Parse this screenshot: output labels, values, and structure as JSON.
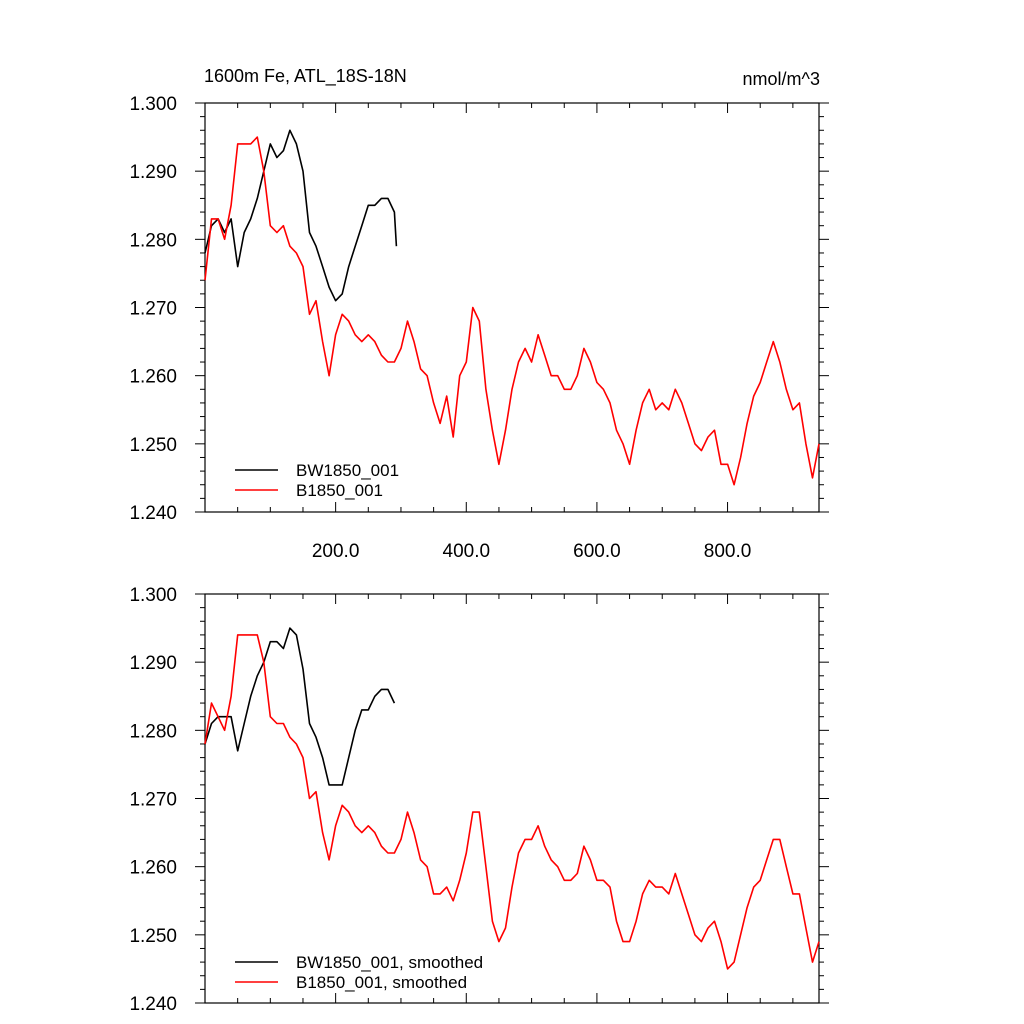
{
  "chart_data": [
    {
      "type": "line",
      "title": "1600m Fe, ATL_18S-18N",
      "units": "nmol/m^3",
      "x_tick_labels": [
        "200.0",
        "400.0",
        "600.0",
        "800.0"
      ],
      "x_ticks": [
        200,
        400,
        600,
        800
      ],
      "xlim": [
        0,
        940
      ],
      "ylim": [
        1.24,
        1.3
      ],
      "y_ticks": [
        1.24,
        1.25,
        1.26,
        1.27,
        1.28,
        1.29,
        1.3
      ],
      "y_tick_labels": [
        "1.240",
        "1.250",
        "1.260",
        "1.270",
        "1.280",
        "1.290",
        "1.300"
      ],
      "legend_position": "bottom-left",
      "colors": {
        "BW1850_001": "#000000",
        "B1850_001": "#ff0000"
      },
      "series": [
        {
          "name": "BW1850_001",
          "color": "#000000",
          "x": [
            0,
            10,
            20,
            30,
            40,
            50,
            60,
            70,
            80,
            90,
            100,
            110,
            120,
            130,
            140,
            150,
            160,
            170,
            180,
            190,
            200,
            210,
            220,
            230,
            240,
            250,
            260,
            270,
            280,
            290,
            293
          ],
          "y": [
            1.278,
            1.282,
            1.283,
            1.281,
            1.283,
            1.276,
            1.281,
            1.283,
            1.286,
            1.29,
            1.294,
            1.292,
            1.293,
            1.296,
            1.294,
            1.29,
            1.281,
            1.279,
            1.276,
            1.273,
            1.271,
            1.272,
            1.276,
            1.279,
            1.282,
            1.285,
            1.285,
            1.286,
            1.286,
            1.284,
            1.279
          ]
        },
        {
          "name": "B1850_001",
          "color": "#ff0000",
          "x": [
            0,
            10,
            20,
            30,
            40,
            50,
            60,
            70,
            80,
            90,
            100,
            110,
            120,
            130,
            140,
            150,
            160,
            170,
            180,
            190,
            200,
            210,
            220,
            230,
            240,
            250,
            260,
            270,
            280,
            290,
            300,
            310,
            320,
            330,
            340,
            350,
            360,
            370,
            380,
            390,
            400,
            410,
            420,
            430,
            440,
            450,
            460,
            470,
            480,
            490,
            500,
            510,
            520,
            530,
            540,
            550,
            560,
            570,
            580,
            590,
            600,
            610,
            620,
            630,
            640,
            650,
            660,
            670,
            680,
            690,
            700,
            710,
            720,
            730,
            740,
            750,
            760,
            770,
            780,
            790,
            800,
            810,
            820,
            830,
            840,
            850,
            860,
            870,
            880,
            890,
            900,
            910,
            920,
            930,
            940
          ],
          "y": [
            1.274,
            1.283,
            1.283,
            1.28,
            1.285,
            1.294,
            1.294,
            1.294,
            1.295,
            1.29,
            1.282,
            1.281,
            1.282,
            1.279,
            1.278,
            1.276,
            1.269,
            1.271,
            1.265,
            1.26,
            1.266,
            1.269,
            1.268,
            1.266,
            1.265,
            1.266,
            1.265,
            1.263,
            1.262,
            1.262,
            1.264,
            1.268,
            1.265,
            1.261,
            1.26,
            1.256,
            1.253,
            1.257,
            1.251,
            1.26,
            1.262,
            1.27,
            1.268,
            1.258,
            1.252,
            1.247,
            1.252,
            1.258,
            1.262,
            1.264,
            1.262,
            1.266,
            1.263,
            1.26,
            1.26,
            1.258,
            1.258,
            1.26,
            1.264,
            1.262,
            1.259,
            1.258,
            1.256,
            1.252,
            1.25,
            1.247,
            1.252,
            1.256,
            1.258,
            1.255,
            1.256,
            1.255,
            1.258,
            1.256,
            1.253,
            1.25,
            1.249,
            1.251,
            1.252,
            1.247,
            1.247,
            1.244,
            1.248,
            1.253,
            1.257,
            1.259,
            1.262,
            1.265,
            1.262,
            1.258,
            1.255,
            1.256,
            1.25,
            1.245,
            1.25
          ]
        }
      ]
    },
    {
      "type": "line",
      "xlim": [
        0,
        940
      ],
      "x_ticks": [
        200,
        400,
        600,
        800
      ],
      "ylim": [
        1.24,
        1.3
      ],
      "y_ticks": [
        1.24,
        1.25,
        1.26,
        1.27,
        1.28,
        1.29,
        1.3
      ],
      "y_tick_labels": [
        "1.240",
        "1.250",
        "1.260",
        "1.270",
        "1.280",
        "1.290",
        "1.300"
      ],
      "legend_position": "bottom-left",
      "colors": {
        "BW1850_001, smoothed": "#000000",
        "B1850_001, smoothed": "#ff0000"
      },
      "series": [
        {
          "name": "BW1850_001, smoothed",
          "color": "#000000",
          "x": [
            0,
            10,
            20,
            30,
            40,
            50,
            60,
            70,
            80,
            90,
            100,
            110,
            120,
            130,
            140,
            150,
            160,
            170,
            180,
            190,
            200,
            210,
            220,
            230,
            240,
            250,
            260,
            270,
            280,
            290
          ],
          "y": [
            1.278,
            1.281,
            1.282,
            1.282,
            1.282,
            1.277,
            1.281,
            1.285,
            1.288,
            1.29,
            1.293,
            1.293,
            1.292,
            1.295,
            1.294,
            1.289,
            1.281,
            1.279,
            1.276,
            1.272,
            1.272,
            1.272,
            1.276,
            1.28,
            1.283,
            1.283,
            1.285,
            1.286,
            1.286,
            1.284
          ]
        },
        {
          "name": "B1850_001, smoothed",
          "color": "#ff0000",
          "x": [
            0,
            10,
            20,
            30,
            40,
            50,
            60,
            70,
            80,
            90,
            100,
            110,
            120,
            130,
            140,
            150,
            160,
            170,
            180,
            190,
            200,
            210,
            220,
            230,
            240,
            250,
            260,
            270,
            280,
            290,
            300,
            310,
            320,
            330,
            340,
            350,
            360,
            370,
            380,
            390,
            400,
            410,
            420,
            430,
            440,
            450,
            460,
            470,
            480,
            490,
            500,
            510,
            520,
            530,
            540,
            550,
            560,
            570,
            580,
            590,
            600,
            610,
            620,
            630,
            640,
            650,
            660,
            670,
            680,
            690,
            700,
            710,
            720,
            730,
            740,
            750,
            760,
            770,
            780,
            790,
            800,
            810,
            820,
            830,
            840,
            850,
            860,
            870,
            880,
            890,
            900,
            910,
            920,
            930,
            940
          ],
          "y": [
            1.278,
            1.284,
            1.282,
            1.28,
            1.285,
            1.294,
            1.294,
            1.294,
            1.294,
            1.29,
            1.282,
            1.281,
            1.281,
            1.279,
            1.278,
            1.276,
            1.27,
            1.271,
            1.265,
            1.261,
            1.266,
            1.269,
            1.268,
            1.266,
            1.265,
            1.266,
            1.265,
            1.263,
            1.262,
            1.262,
            1.264,
            1.268,
            1.265,
            1.261,
            1.26,
            1.256,
            1.256,
            1.257,
            1.255,
            1.258,
            1.262,
            1.268,
            1.268,
            1.26,
            1.252,
            1.249,
            1.251,
            1.257,
            1.262,
            1.264,
            1.264,
            1.266,
            1.263,
            1.261,
            1.26,
            1.258,
            1.258,
            1.259,
            1.263,
            1.261,
            1.258,
            1.258,
            1.257,
            1.252,
            1.249,
            1.249,
            1.252,
            1.256,
            1.258,
            1.257,
            1.257,
            1.256,
            1.259,
            1.256,
            1.253,
            1.25,
            1.249,
            1.251,
            1.252,
            1.249,
            1.245,
            1.246,
            1.25,
            1.254,
            1.257,
            1.258,
            1.261,
            1.264,
            1.264,
            1.26,
            1.256,
            1.256,
            1.251,
            1.246,
            1.249
          ]
        }
      ]
    }
  ]
}
